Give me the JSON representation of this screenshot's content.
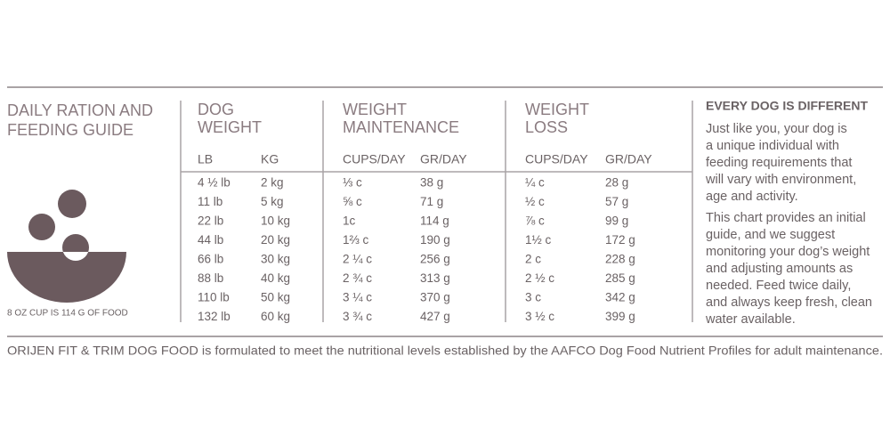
{
  "title": [
    "DAILY RATION AND",
    "FEEDING GUIDE"
  ],
  "caption": "8 OZ CUP IS 114 G OF FOOD",
  "table": {
    "groups": [
      {
        "heading": [
          "DOG",
          "WEIGHT"
        ],
        "columns": [
          "LB",
          "KG"
        ]
      },
      {
        "heading": [
          "WEIGHT",
          "MAINTENANCE"
        ],
        "columns": [
          "CUPS/DAY",
          "GR/DAY"
        ]
      },
      {
        "heading": [
          "WEIGHT",
          "LOSS"
        ],
        "columns": [
          "CUPS/DAY",
          "GR/DAY"
        ]
      }
    ],
    "rows": [
      [
        "4 ½ lb",
        "2 kg",
        "⅓ c",
        "38 g",
        "¼ c",
        "28 g"
      ],
      [
        "11 lb",
        "5 kg",
        "⅝ c",
        "71 g",
        "½ c",
        "57 g"
      ],
      [
        "22 lb",
        "10 kg",
        "1c",
        "114 g",
        "⅞ c",
        "99 g"
      ],
      [
        "44 lb",
        "20 kg",
        "1⅔ c",
        "190 g",
        "1½ c",
        "172 g"
      ],
      [
        "66 lb",
        "30 kg",
        "2 ¼ c",
        "256 g",
        "2 c",
        "228 g"
      ],
      [
        "88 lb",
        "40 kg",
        "2 ¾ c",
        "313 g",
        "2 ½ c",
        "285 g"
      ],
      [
        "110 lb",
        "50 kg",
        "3 ¼ c",
        "370 g",
        "3 c",
        "342 g"
      ],
      [
        "132 lb",
        "60 kg",
        "3 ¾ c",
        "427 g",
        "3 ½ c",
        "399 g"
      ]
    ]
  },
  "sidebar": {
    "heading": "EVERY DOG IS DIFFERENT",
    "paragraphs": [
      [
        "Just like you, your dog is",
        "a unique individual with",
        "feeding requirements that",
        "will vary with environment,",
        "age and activity."
      ],
      [
        "This chart provides an initial",
        "guide, and we suggest",
        "monitoring your dog’s weight",
        "and adjusting amounts as",
        "needed. Feed twice daily,",
        "and always keep fresh, clean",
        "water available."
      ]
    ]
  },
  "footer": "ORIJEN FIT & TRIM DOG FOOD is formulated to meet the nutritional levels established by the AAFCO Dog Food Nutrient Profiles for adult maintenance."
}
